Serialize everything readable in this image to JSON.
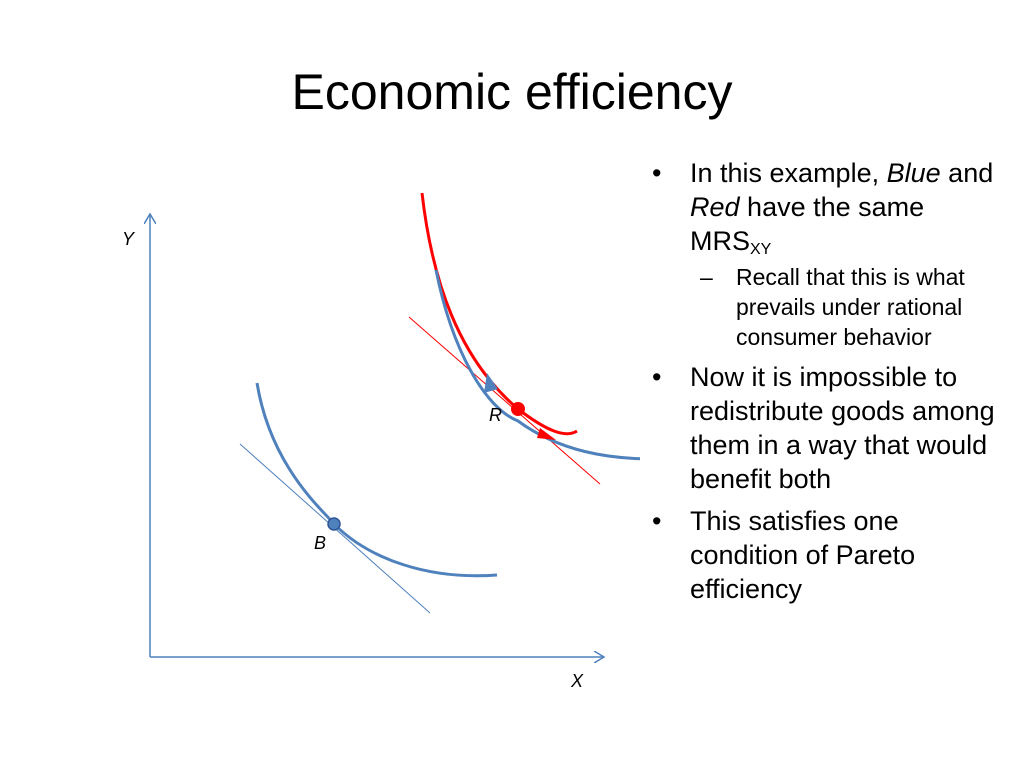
{
  "title": "Economic efficiency",
  "diagram": {
    "y_axis_label": "Y",
    "x_axis_label": "X",
    "point_blue_label": "B",
    "point_red_label": "R",
    "colors": {
      "blue": "#4f81bd",
      "red": "#ff0000",
      "axis": "#4f81bd"
    }
  },
  "bullets": {
    "b1_pre": "In this example,",
    "b1_blue": "Blue",
    "b1_and": "and",
    "b1_red": "Red",
    "b1_post": "have the same MRS",
    "b1_sub": "XY",
    "b1_sub1": "Recall that this is what prevails under rational consumer behavior",
    "b2": "Now it is impossible to redistribute goods among them in a way that would benefit both",
    "b3": "This satisfies one condition of Pareto efficiency"
  }
}
